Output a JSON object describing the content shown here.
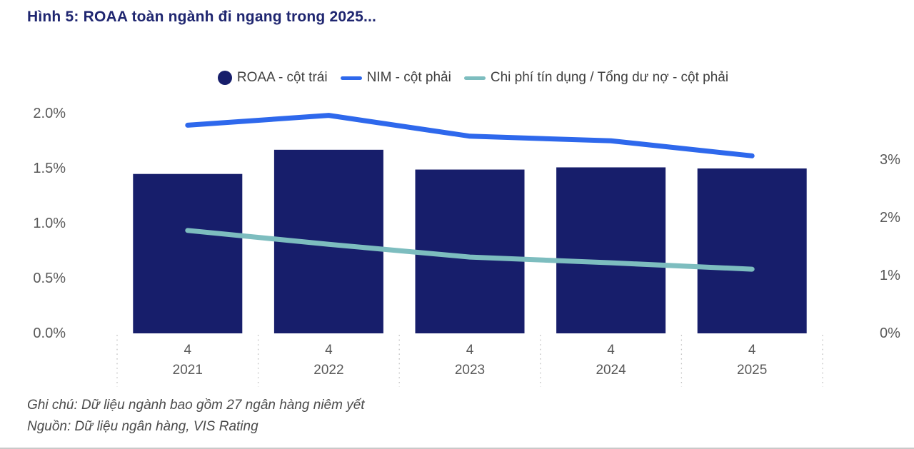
{
  "title": "Hình 5: ROAA toàn ngành đi ngang trong 2025...",
  "colors": {
    "bar_navy": "#171E6B",
    "nim_blue": "#2E68EC",
    "credit_cost_teal": "#7DBDBF",
    "title_navy": "#1F2670",
    "axis_text_gray": "#595959",
    "footnote_gray": "#4A4A4A"
  },
  "legend": {
    "items": [
      {
        "label": "ROAA - cột trái",
        "marker": "circle",
        "color": "#171E6B"
      },
      {
        "label": "NIM - cột phải",
        "marker": "line",
        "color": "#2E68EC"
      },
      {
        "label": "Chi phí tín dụng / Tổng dư nợ - cột phải",
        "marker": "line",
        "color": "#7DBDBF"
      }
    ]
  },
  "chart_data": {
    "type": "combo",
    "title": "Hình 5: ROAA toàn ngành đi ngang trong 2025...",
    "categories": [
      {
        "quarter": "4",
        "year": "2021"
      },
      {
        "quarter": "4",
        "year": "2022"
      },
      {
        "quarter": "4",
        "year": "2023"
      },
      {
        "quarter": "4",
        "year": "2024"
      },
      {
        "quarter": "4",
        "year": "2025"
      }
    ],
    "series": [
      {
        "name": "ROAA - cột trái",
        "type": "bar",
        "axis": "left",
        "color": "#171E6B",
        "values": [
          1.45,
          1.67,
          1.49,
          1.51,
          1.5
        ]
      },
      {
        "name": "NIM - cột phải",
        "type": "line",
        "axis": "right",
        "color": "#2E68EC",
        "values": [
          3.6,
          3.77,
          3.41,
          3.33,
          3.07
        ]
      },
      {
        "name": "Chi phí tín dụng / Tổng dư nợ - cột phải",
        "type": "line",
        "axis": "right",
        "color": "#7DBDBF",
        "values": [
          1.78,
          1.54,
          1.32,
          1.22,
          1.11
        ]
      }
    ],
    "left_axis": {
      "ticks": [
        "0.0%",
        "0.5%",
        "1.0%",
        "1.5%",
        "2.0%"
      ],
      "tick_values": [
        0,
        0.5,
        1.0,
        1.5,
        2.0
      ],
      "range": [
        0,
        2.0
      ]
    },
    "right_axis": {
      "ticks": [
        "0%",
        "1%",
        "2%",
        "3%"
      ],
      "tick_values": [
        0,
        1,
        2,
        3
      ],
      "range": [
        0,
        3.8
      ]
    },
    "grid": false,
    "legend_position": "top"
  },
  "footnotes": {
    "note": "Ghi chú: Dữ liệu ngành bao gồm 27 ngân hàng niêm yết",
    "source": "Nguồn: Dữ liệu ngân hàng, VIS Rating"
  }
}
